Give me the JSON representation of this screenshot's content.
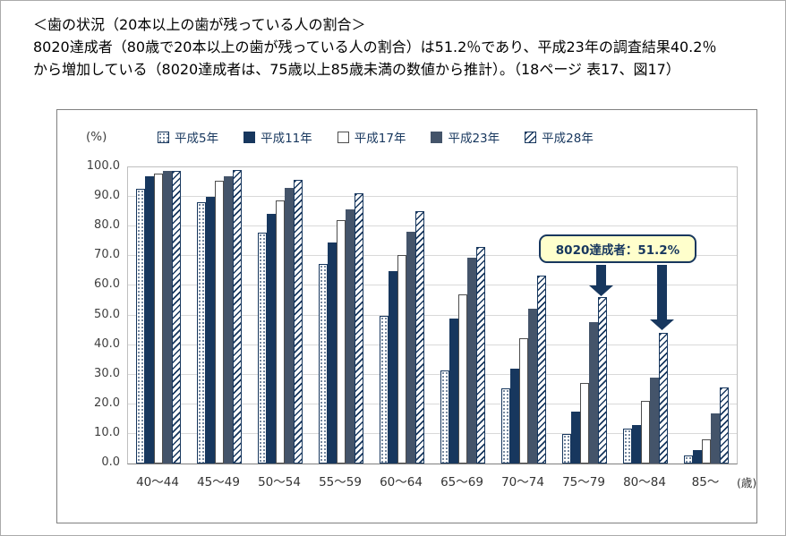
{
  "header": {
    "lines": [
      "＜歯の状況（20本以上の歯が残っている人の割合＞",
      "8020達成者（80歳で20本以上の歯が残っている人の割合）は51.2％であり、平成23年の調査結果40.2％",
      "から増加している（8020達成者は、75歳以上85歳未満の数値から推計）。（18ページ 表17、図17）"
    ]
  },
  "chart_data": {
    "type": "bar",
    "title": "",
    "unit_label": "(%)",
    "axis_unit_label": "(歳)",
    "categories": [
      "40～44",
      "45～49",
      "50～54",
      "55～59",
      "60～64",
      "65～69",
      "70～74",
      "75～79",
      "80～84",
      "85～"
    ],
    "series": [
      {
        "name": "平成5年",
        "pattern": "dots",
        "values": [
          92.9,
          88.1,
          77.9,
          67.5,
          49.9,
          31.4,
          25.5,
          10.0,
          11.7,
          2.8
        ]
      },
      {
        "name": "平成11年",
        "pattern": "solid-navy",
        "values": [
          97.1,
          90.0,
          84.3,
          74.6,
          64.9,
          48.8,
          31.9,
          17.5,
          13.0,
          4.5
        ]
      },
      {
        "name": "平成17年",
        "pattern": "outline-white",
        "values": [
          98.0,
          95.5,
          88.9,
          82.3,
          70.3,
          57.1,
          42.4,
          27.1,
          21.1,
          8.3
        ]
      },
      {
        "name": "平成23年",
        "pattern": "solid-slate",
        "values": [
          98.7,
          97.1,
          93.0,
          85.7,
          78.4,
          69.6,
          52.3,
          47.6,
          28.9,
          17.0
        ]
      },
      {
        "name": "平成28年",
        "pattern": "hatch",
        "values": [
          98.8,
          99.0,
          95.9,
          91.3,
          85.2,
          73.0,
          63.4,
          56.1,
          44.2,
          25.7
        ]
      }
    ],
    "ylim": [
      0,
      100
    ],
    "ytick_step": 10,
    "yticks": [
      "100.0",
      "90.0",
      "80.0",
      "70.0",
      "60.0",
      "50.0",
      "40.0",
      "30.0",
      "20.0",
      "10.0",
      "0.0"
    ],
    "grid": true,
    "legend_position": "top",
    "annotation": {
      "label": "8020達成者：51.2%"
    },
    "colors": {
      "navy": "#17375E",
      "slate": "#44546A",
      "annotation_bg": "#FFFFCC",
      "grid": "#D9D9D9",
      "axis": "#7F7F7F"
    }
  }
}
